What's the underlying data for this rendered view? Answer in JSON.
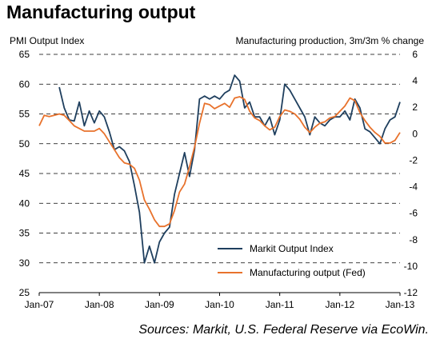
{
  "title": "Manufacturing output",
  "sources": "Sources: Markit, U.S. Federal Reserve via EcoWin.",
  "chart_data": {
    "type": "line",
    "title": "Manufacturing output",
    "ylabel_left": "PMI Output Index",
    "ylabel_right": "Manufacturing production, 3m/3m % change",
    "xlim": [
      "2007-01",
      "2013-01"
    ],
    "x_ticks": [
      "Jan-07",
      "Jan-08",
      "Jan-09",
      "Jan-10",
      "Jan-11",
      "Jan-12",
      "Jan-13"
    ],
    "ylim_left": [
      25,
      65
    ],
    "y_ticks_left": [
      "65",
      "60",
      "55",
      "50",
      "45",
      "40",
      "35",
      "30",
      "25"
    ],
    "ylim_right": [
      -12,
      6
    ],
    "y_ticks_right": [
      "6",
      "4",
      "2",
      "0",
      "-2",
      "-4",
      "-6",
      "-8",
      "-10",
      "-12"
    ],
    "grid": "horizontal dashed",
    "legend": "bottom-right",
    "series": [
      {
        "name": "Markit Output Index",
        "axis": "left",
        "color": "#1f3f5e",
        "points": [
          [
            "2007-05",
            59.5
          ],
          [
            "2007-06",
            56.0
          ],
          [
            "2007-07",
            54.0
          ],
          [
            "2007-08",
            53.8
          ],
          [
            "2007-09",
            57.0
          ],
          [
            "2007-10",
            53.0
          ],
          [
            "2007-11",
            55.5
          ],
          [
            "2007-12",
            53.5
          ],
          [
            "2008-01",
            55.5
          ],
          [
            "2008-02",
            54.5
          ],
          [
            "2008-03",
            52.0
          ],
          [
            "2008-04",
            49.0
          ],
          [
            "2008-05",
            49.5
          ],
          [
            "2008-06",
            48.8
          ],
          [
            "2008-07",
            47.0
          ],
          [
            "2008-08",
            43.0
          ],
          [
            "2008-09",
            38.5
          ],
          [
            "2008-10",
            30.0
          ],
          [
            "2008-11",
            32.8
          ],
          [
            "2008-12",
            30.0
          ],
          [
            "2009-01",
            33.5
          ],
          [
            "2009-02",
            35.0
          ],
          [
            "2009-03",
            36.0
          ],
          [
            "2009-04",
            41.5
          ],
          [
            "2009-05",
            45.0
          ],
          [
            "2009-06",
            48.5
          ],
          [
            "2009-07",
            44.5
          ],
          [
            "2009-08",
            49.0
          ],
          [
            "2009-09",
            57.5
          ],
          [
            "2009-10",
            58.0
          ],
          [
            "2009-11",
            57.5
          ],
          [
            "2009-12",
            58.0
          ],
          [
            "2010-01",
            57.5
          ],
          [
            "2010-02",
            58.5
          ],
          [
            "2010-03",
            59.0
          ],
          [
            "2010-04",
            61.5
          ],
          [
            "2010-05",
            60.5
          ],
          [
            "2010-06",
            56.0
          ],
          [
            "2010-07",
            57.0
          ],
          [
            "2010-08",
            54.5
          ],
          [
            "2010-09",
            54.5
          ],
          [
            "2010-10",
            53.0
          ],
          [
            "2010-11",
            54.5
          ],
          [
            "2010-12",
            51.5
          ],
          [
            "2011-01",
            54.0
          ],
          [
            "2011-02",
            60.0
          ],
          [
            "2011-03",
            59.0
          ],
          [
            "2011-04",
            57.5
          ],
          [
            "2011-05",
            56.0
          ],
          [
            "2011-06",
            54.5
          ],
          [
            "2011-07",
            51.5
          ],
          [
            "2011-08",
            54.5
          ],
          [
            "2011-09",
            53.5
          ],
          [
            "2011-10",
            53.0
          ],
          [
            "2011-11",
            54.0
          ],
          [
            "2011-12",
            54.5
          ],
          [
            "2012-01",
            54.5
          ],
          [
            "2012-02",
            55.5
          ],
          [
            "2012-03",
            54.0
          ],
          [
            "2012-04",
            57.5
          ],
          [
            "2012-05",
            56.0
          ],
          [
            "2012-06",
            52.5
          ],
          [
            "2012-07",
            52.0
          ],
          [
            "2012-08",
            51.0
          ],
          [
            "2012-09",
            50.0
          ],
          [
            "2012-10",
            52.5
          ],
          [
            "2012-11",
            54.0
          ],
          [
            "2012-12",
            54.5
          ],
          [
            "2013-01",
            57.0
          ]
        ]
      },
      {
        "name": "Manufacturing output (Fed)",
        "axis": "right",
        "color": "#e8722c",
        "points": [
          [
            "2007-01",
            0.6
          ],
          [
            "2007-02",
            1.4
          ],
          [
            "2007-03",
            1.3
          ],
          [
            "2007-04",
            1.4
          ],
          [
            "2007-05",
            1.5
          ],
          [
            "2007-06",
            1.4
          ],
          [
            "2007-07",
            1.0
          ],
          [
            "2007-08",
            0.6
          ],
          [
            "2007-09",
            0.4
          ],
          [
            "2007-10",
            0.2
          ],
          [
            "2007-11",
            0.2
          ],
          [
            "2007-12",
            0.2
          ],
          [
            "2008-01",
            0.4
          ],
          [
            "2008-02",
            0.0
          ],
          [
            "2008-03",
            -0.6
          ],
          [
            "2008-04",
            -1.2
          ],
          [
            "2008-05",
            -1.8
          ],
          [
            "2008-06",
            -2.2
          ],
          [
            "2008-07",
            -2.3
          ],
          [
            "2008-08",
            -2.6
          ],
          [
            "2008-09",
            -3.5
          ],
          [
            "2008-10",
            -5.0
          ],
          [
            "2008-11",
            -5.7
          ],
          [
            "2008-12",
            -6.5
          ],
          [
            "2009-01",
            -7.0
          ],
          [
            "2009-02",
            -7.0
          ],
          [
            "2009-03",
            -6.8
          ],
          [
            "2009-04",
            -5.8
          ],
          [
            "2009-05",
            -4.4
          ],
          [
            "2009-06",
            -3.8
          ],
          [
            "2009-07",
            -2.5
          ],
          [
            "2009-08",
            -1.0
          ],
          [
            "2009-09",
            0.8
          ],
          [
            "2009-10",
            2.3
          ],
          [
            "2009-11",
            2.2
          ],
          [
            "2009-12",
            1.9
          ],
          [
            "2010-01",
            2.1
          ],
          [
            "2010-02",
            2.3
          ],
          [
            "2010-03",
            2.0
          ],
          [
            "2010-04",
            2.7
          ],
          [
            "2010-05",
            2.8
          ],
          [
            "2010-06",
            2.6
          ],
          [
            "2010-07",
            1.7
          ],
          [
            "2010-08",
            1.2
          ],
          [
            "2010-09",
            1.0
          ],
          [
            "2010-10",
            0.6
          ],
          [
            "2010-11",
            0.3
          ],
          [
            "2010-12",
            0.5
          ],
          [
            "2011-01",
            1.3
          ],
          [
            "2011-02",
            1.8
          ],
          [
            "2011-03",
            1.7
          ],
          [
            "2011-04",
            1.5
          ],
          [
            "2011-05",
            1.1
          ],
          [
            "2011-06",
            0.5
          ],
          [
            "2011-07",
            0.1
          ],
          [
            "2011-08",
            0.5
          ],
          [
            "2011-09",
            0.8
          ],
          [
            "2011-10",
            0.9
          ],
          [
            "2011-11",
            1.2
          ],
          [
            "2011-12",
            1.3
          ],
          [
            "2012-01",
            1.7
          ],
          [
            "2012-02",
            2.1
          ],
          [
            "2012-03",
            2.7
          ],
          [
            "2012-04",
            2.5
          ],
          [
            "2012-05",
            1.6
          ],
          [
            "2012-06",
            1.0
          ],
          [
            "2012-07",
            0.5
          ],
          [
            "2012-08",
            0.1
          ],
          [
            "2012-09",
            -0.2
          ],
          [
            "2012-10",
            -0.7
          ],
          [
            "2012-11",
            -0.7
          ],
          [
            "2012-12",
            -0.5
          ],
          [
            "2013-01",
            0.1
          ]
        ]
      }
    ]
  }
}
